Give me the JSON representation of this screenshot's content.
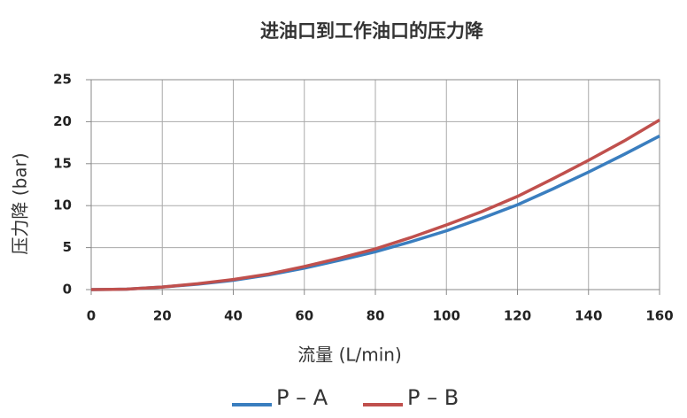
{
  "chart_data": {
    "type": "line",
    "title": "进油口到工作油口的压力降",
    "x_label": "流量 (L/min)",
    "y_label": "压力降 (bar)",
    "x": [
      0,
      10,
      20,
      30,
      40,
      50,
      60,
      70,
      80,
      90,
      100,
      110,
      120,
      130,
      140,
      150,
      160
    ],
    "series": [
      {
        "name": "P – A",
        "color": "#3a7ebf",
        "values": [
          0,
          0.05,
          0.3,
          0.65,
          1.1,
          1.75,
          2.55,
          3.5,
          4.5,
          5.7,
          7.0,
          8.5,
          10.1,
          12.0,
          14.0,
          16.1,
          18.3
        ]
      },
      {
        "name": "P – B",
        "color": "#c0504d",
        "values": [
          0,
          0.05,
          0.3,
          0.7,
          1.2,
          1.85,
          2.75,
          3.75,
          4.85,
          6.2,
          7.7,
          9.3,
          11.1,
          13.2,
          15.4,
          17.7,
          20.2
        ]
      }
    ],
    "xlim": [
      0,
      160
    ],
    "xticks": [
      0,
      20,
      40,
      60,
      80,
      100,
      120,
      140,
      160
    ],
    "ylim": [
      0,
      25
    ],
    "yticks": [
      0,
      5,
      10,
      15,
      20,
      25
    ],
    "grid": true
  }
}
